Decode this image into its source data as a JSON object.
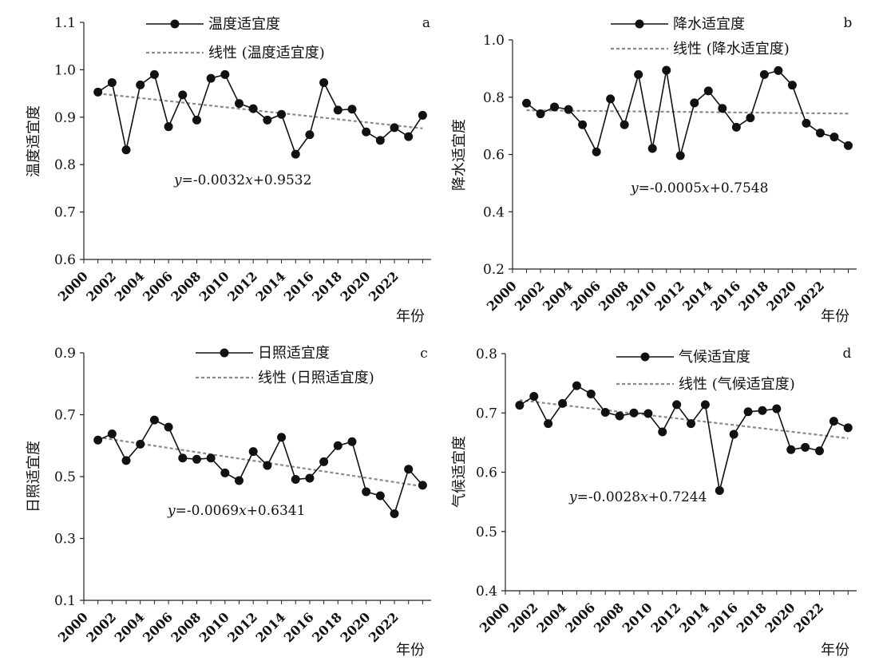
{
  "chart_data": [
    {
      "type": "line",
      "panel_label": "a",
      "ylabel": "温度适宜度",
      "xlabel": "年份",
      "ylim": [
        0.6,
        1.1
      ],
      "yticks": [
        "0.6",
        "0.7",
        "0.8",
        "0.9",
        "1.0",
        "1.1"
      ],
      "xticks": [
        "2000",
        "2002",
        "2004",
        "2006",
        "2008",
        "2010",
        "2012",
        "2014",
        "2016",
        "2018",
        "2020",
        "2022"
      ],
      "series": [
        {
          "name": "温度适宜度",
          "x": [
            2001,
            2002,
            2003,
            2004,
            2005,
            2006,
            2007,
            2008,
            2009,
            2010,
            2011,
            2012,
            2013,
            2014,
            2015,
            2016,
            2017,
            2018,
            2019,
            2020,
            2021,
            2022,
            2023,
            2024
          ],
          "values": [
            0.953,
            0.973,
            0.831,
            0.968,
            0.99,
            0.88,
            0.947,
            0.894,
            0.982,
            0.99,
            0.929,
            0.918,
            0.894,
            0.906,
            0.822,
            0.863,
            0.973,
            0.915,
            0.917,
            0.869,
            0.851,
            0.878,
            0.859,
            0.904
          ]
        },
        {
          "name": "线性 (温度适宜度)",
          "trend": true
        }
      ],
      "equation": {
        "y": "y",
        "rhs": "=-0.0032",
        "x": "x",
        "tail": "+0.9532"
      },
      "trend_coef": [
        -0.0032,
        0.9532
      ]
    },
    {
      "type": "line",
      "panel_label": "b",
      "ylabel": "降水适宜度",
      "xlabel": "年份",
      "ylim": [
        0.2,
        1.0
      ],
      "yticks": [
        "0.2",
        "0.4",
        "0.6",
        "0.8",
        "1.0"
      ],
      "xticks": [
        "2000",
        "2002",
        "2004",
        "2006",
        "2008",
        "2010",
        "2012",
        "2014",
        "2016",
        "2018",
        "2020",
        "2022"
      ],
      "series": [
        {
          "name": "降水适宜度",
          "x": [
            2001,
            2002,
            2003,
            2004,
            2005,
            2006,
            2007,
            2008,
            2009,
            2010,
            2011,
            2012,
            2013,
            2014,
            2015,
            2016,
            2017,
            2018,
            2019,
            2020,
            2021,
            2022,
            2023,
            2024
          ],
          "values": [
            0.779,
            0.742,
            0.766,
            0.757,
            0.704,
            0.609,
            0.794,
            0.704,
            0.879,
            0.621,
            0.894,
            0.596,
            0.78,
            0.822,
            0.761,
            0.695,
            0.728,
            0.879,
            0.893,
            0.842,
            0.709,
            0.675,
            0.661,
            0.631
          ]
        },
        {
          "name": "线性 (降水适宜度)",
          "trend": true
        }
      ],
      "equation": {
        "y": "y",
        "rhs": "=-0.0005",
        "x": "x",
        "tail": "+0.7548"
      },
      "trend_coef": [
        -0.0005,
        0.7548
      ]
    },
    {
      "type": "line",
      "panel_label": "c",
      "ylabel": "日照适宜度",
      "xlabel": "年份",
      "ylim": [
        0.1,
        0.9
      ],
      "yticks": [
        "0.1",
        "0.3",
        "0.5",
        "0.7",
        "0.9"
      ],
      "xticks": [
        "2000",
        "2002",
        "2004",
        "2006",
        "2008",
        "2010",
        "2012",
        "2014",
        "2016",
        "2018",
        "2020",
        "2022"
      ],
      "series": [
        {
          "name": "日照适宜度",
          "x": [
            2001,
            2002,
            2003,
            2004,
            2005,
            2006,
            2007,
            2008,
            2009,
            2010,
            2011,
            2012,
            2013,
            2014,
            2015,
            2016,
            2017,
            2018,
            2019,
            2020,
            2021,
            2022,
            2023,
            2024
          ],
          "values": [
            0.618,
            0.638,
            0.552,
            0.605,
            0.683,
            0.66,
            0.56,
            0.556,
            0.56,
            0.512,
            0.487,
            0.581,
            0.536,
            0.627,
            0.491,
            0.495,
            0.548,
            0.6,
            0.613,
            0.451,
            0.438,
            0.38,
            0.524,
            0.472
          ]
        },
        {
          "name": "线性 (日照适宜度)",
          "trend": true
        }
      ],
      "equation": {
        "y": "y",
        "rhs": "=-0.0069",
        "x": "x",
        "tail": "+0.6341"
      },
      "trend_coef": [
        -0.0069,
        0.6341
      ]
    },
    {
      "type": "line",
      "panel_label": "d",
      "ylabel": "气候适宜度",
      "xlabel": "年份",
      "ylim": [
        0.4,
        0.8
      ],
      "yticks": [
        "0.4",
        "0.5",
        "0.6",
        "0.7",
        "0.8"
      ],
      "xticks": [
        "2000",
        "2002",
        "2004",
        "2006",
        "2008",
        "2010",
        "2012",
        "2014",
        "2016",
        "2018",
        "2020",
        "2022"
      ],
      "series": [
        {
          "name": "气候适宜度",
          "x": [
            2001,
            2002,
            2003,
            2004,
            2005,
            2006,
            2007,
            2008,
            2009,
            2010,
            2011,
            2012,
            2013,
            2014,
            2015,
            2016,
            2017,
            2018,
            2019,
            2020,
            2021,
            2022,
            2023,
            2024
          ],
          "values": [
            0.713,
            0.728,
            0.682,
            0.716,
            0.746,
            0.732,
            0.701,
            0.695,
            0.7,
            0.699,
            0.668,
            0.714,
            0.682,
            0.714,
            0.569,
            0.664,
            0.702,
            0.704,
            0.707,
            0.638,
            0.642,
            0.636,
            0.686,
            0.675
          ]
        },
        {
          "name": "线性 (气候适宜度)",
          "trend": true
        }
      ],
      "equation": {
        "y": "y",
        "rhs": "=-0.0028",
        "x": "x",
        "tail": "+0.7244"
      },
      "trend_coef": [
        -0.0028,
        0.7244
      ]
    }
  ]
}
